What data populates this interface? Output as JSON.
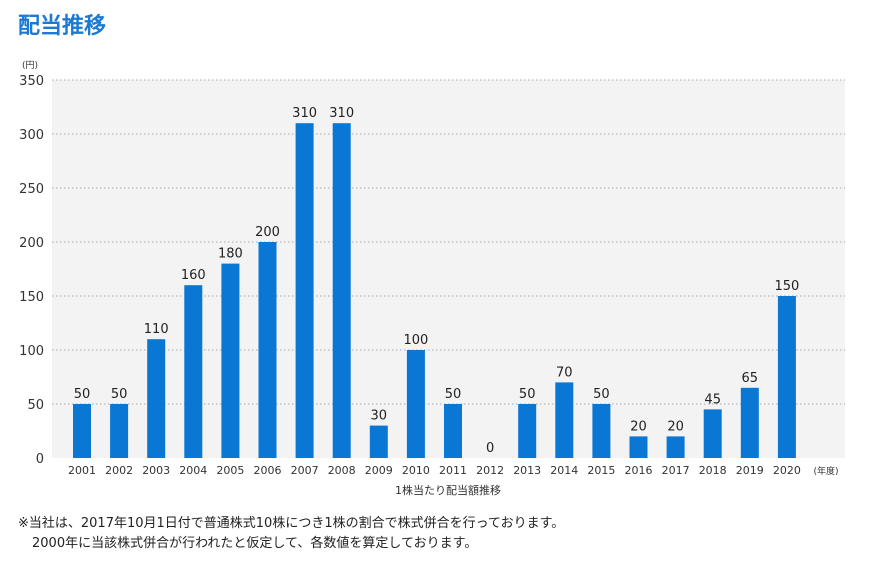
{
  "title": "配当推移",
  "chart_data": {
    "type": "bar",
    "title": "",
    "ylabel": "(円)",
    "xlabel": "1株当たり配当額推移",
    "x_unit": "(年度)",
    "ylim": [
      0,
      350
    ],
    "yticks": [
      0,
      50,
      100,
      150,
      200,
      250,
      300,
      350
    ],
    "grid": true,
    "categories": [
      "2001",
      "2002",
      "2003",
      "2004",
      "2005",
      "2006",
      "2007",
      "2008",
      "2009",
      "2010",
      "2011",
      "2012",
      "2013",
      "2014",
      "2015",
      "2016",
      "2017",
      "2018",
      "2019",
      "2020"
    ],
    "values": [
      50,
      50,
      110,
      160,
      180,
      200,
      310,
      310,
      30,
      100,
      50,
      0,
      50,
      70,
      50,
      20,
      20,
      45,
      65,
      150
    ],
    "bar_color": "#0a77d5",
    "plot_bg": "#f3f3f3"
  },
  "notes": [
    "※当社は、2017年10月1日付で普通株式10株につき1株の割合で株式併合を行っております。",
    "2000年に当該株式併合が行われたと仮定して、各数値を算定しております。"
  ]
}
